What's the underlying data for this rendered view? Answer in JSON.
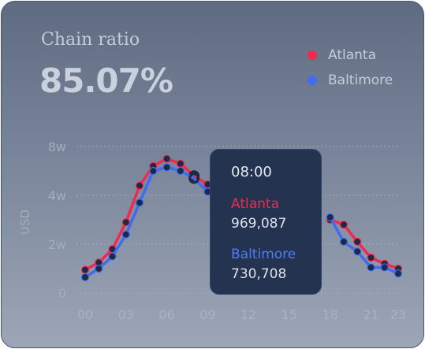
{
  "card": {
    "title": "Chain ratio",
    "value": "85.07%"
  },
  "tooltip": {
    "time": "08:00",
    "items": [
      {
        "name": "Atlanta",
        "value": "969,087"
      },
      {
        "name": "Baltimore",
        "value": "730,708"
      }
    ]
  },
  "chart_data": {
    "type": "line",
    "ylabel": "USD",
    "y_ticks": [
      "0",
      "2w",
      "4w",
      "8w"
    ],
    "x_ticks": [
      "00",
      "03",
      "06",
      "09",
      "12",
      "15",
      "18",
      "21",
      "23"
    ],
    "ylim": [
      0,
      60000
    ],
    "legend_position": "top-right",
    "grid": true,
    "series": [
      {
        "name": "Atlanta",
        "color": "#f2294f",
        "x": [
          0,
          1,
          2,
          3,
          4,
          5,
          6,
          7,
          8,
          9,
          10,
          11,
          12,
          13,
          14,
          15,
          16,
          17,
          18,
          19,
          20,
          21,
          22,
          23
        ],
        "values": [
          9500,
          12500,
          18000,
          29000,
          44000,
          52000,
          55000,
          53000,
          48000,
          44500,
          null,
          null,
          null,
          null,
          null,
          null,
          null,
          null,
          30000,
          28000,
          21000,
          14500,
          12000,
          10000
        ]
      },
      {
        "name": "Baltimore",
        "color": "#3f6cf0",
        "x": [
          0,
          1,
          2,
          3,
          4,
          5,
          6,
          7,
          8,
          9,
          10,
          11,
          12,
          13,
          14,
          15,
          16,
          17,
          18,
          19,
          20,
          21,
          22,
          23
        ],
        "values": [
          6500,
          10000,
          15000,
          24000,
          37000,
          50000,
          51500,
          50000,
          47000,
          41500,
          null,
          null,
          null,
          null,
          null,
          null,
          null,
          null,
          31000,
          21000,
          17000,
          10500,
          10500,
          8000
        ]
      }
    ]
  }
}
